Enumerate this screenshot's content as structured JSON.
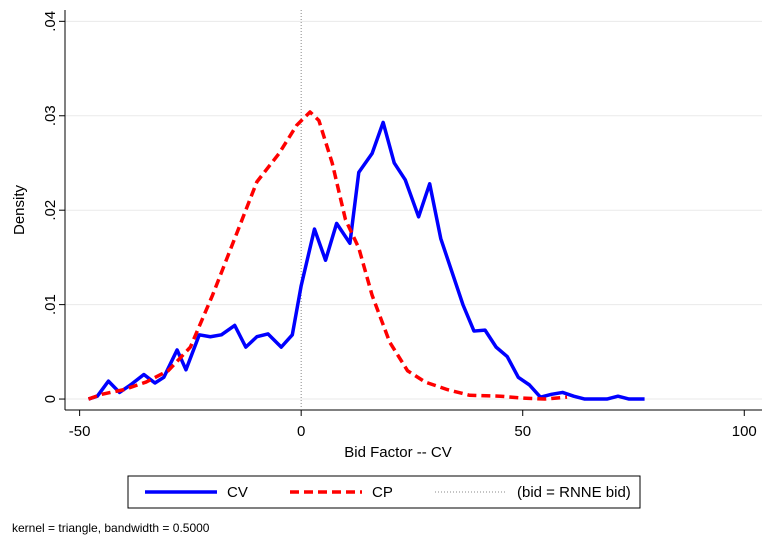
{
  "chart_data": {
    "type": "line",
    "xlabel": "Bid Factor -- CV",
    "ylabel": "Density",
    "note": "kernel = triangle, bandwidth = 0.5000",
    "xlim": [
      -53.3,
      104
    ],
    "ylim": [
      -0.00116,
      0.0412
    ],
    "xticks": [
      -50,
      0,
      50,
      100
    ],
    "yticks": [
      0,
      {
        "value": 0.01,
        "label": ".01"
      },
      {
        "value": 0.02,
        "label": ".02"
      },
      {
        "value": 0.03,
        "label": ".03"
      },
      {
        "value": 0.04,
        "label": ".04"
      }
    ],
    "grid": true,
    "series": [
      {
        "name": "CV",
        "color": "#0000ff",
        "dash": "solid",
        "x": [
          -48,
          -46,
          -43.5,
          -41,
          -38.5,
          -35.5,
          -33,
          -31,
          -28,
          -26,
          -23,
          -20.5,
          -18,
          -15,
          -12.5,
          -10,
          -7.5,
          -4.5,
          -2,
          0,
          3,
          5.5,
          8,
          11,
          13,
          16,
          18.5,
          21,
          23.5,
          26.5,
          29,
          31.5,
          34,
          36.5,
          39,
          41.5,
          44,
          46.5,
          49,
          51.5,
          54,
          56.5,
          59,
          61.5,
          64,
          66.5,
          69,
          71.5,
          74,
          77.5
        ],
        "values": [
          0,
          0.0003,
          0.0019,
          0.0007,
          0.0015,
          0.0026,
          0.0017,
          0.0023,
          0.0052,
          0.0031,
          0.0068,
          0.0066,
          0.0068,
          0.0078,
          0.0055,
          0.0066,
          0.0069,
          0.0055,
          0.0068,
          0.012,
          0.018,
          0.0147,
          0.0186,
          0.0165,
          0.024,
          0.026,
          0.0293,
          0.025,
          0.0232,
          0.0193,
          0.0228,
          0.017,
          0.0135,
          0.01,
          0.0072,
          0.0073,
          0.0055,
          0.0045,
          0.0023,
          0.0015,
          0.0002,
          0.0005,
          0.0007,
          0.0003,
          0,
          0,
          0,
          0.0003,
          0,
          0
        ]
      },
      {
        "name": "CP",
        "color": "#ff0000",
        "dash": "dashed",
        "x": [
          -48,
          -45,
          -40,
          -35,
          -30,
          -25,
          -20,
          -15,
          -10,
          -5,
          -1,
          2,
          4,
          7,
          10,
          13,
          16,
          20,
          24,
          28,
          33,
          38,
          45,
          50,
          55,
          60
        ],
        "values": [
          0,
          0.0005,
          0.001,
          0.0018,
          0.003,
          0.0055,
          0.011,
          0.017,
          0.023,
          0.026,
          0.029,
          0.0304,
          0.0295,
          0.025,
          0.019,
          0.016,
          0.011,
          0.006,
          0.003,
          0.0018,
          0.001,
          0.0004,
          0.0003,
          0.0001,
          0,
          0.0002
        ]
      }
    ],
    "reference_lines": [
      {
        "name": "(bid = RNNE bid)",
        "x": 0,
        "color": "#888888",
        "dash": "dotted"
      }
    ]
  }
}
